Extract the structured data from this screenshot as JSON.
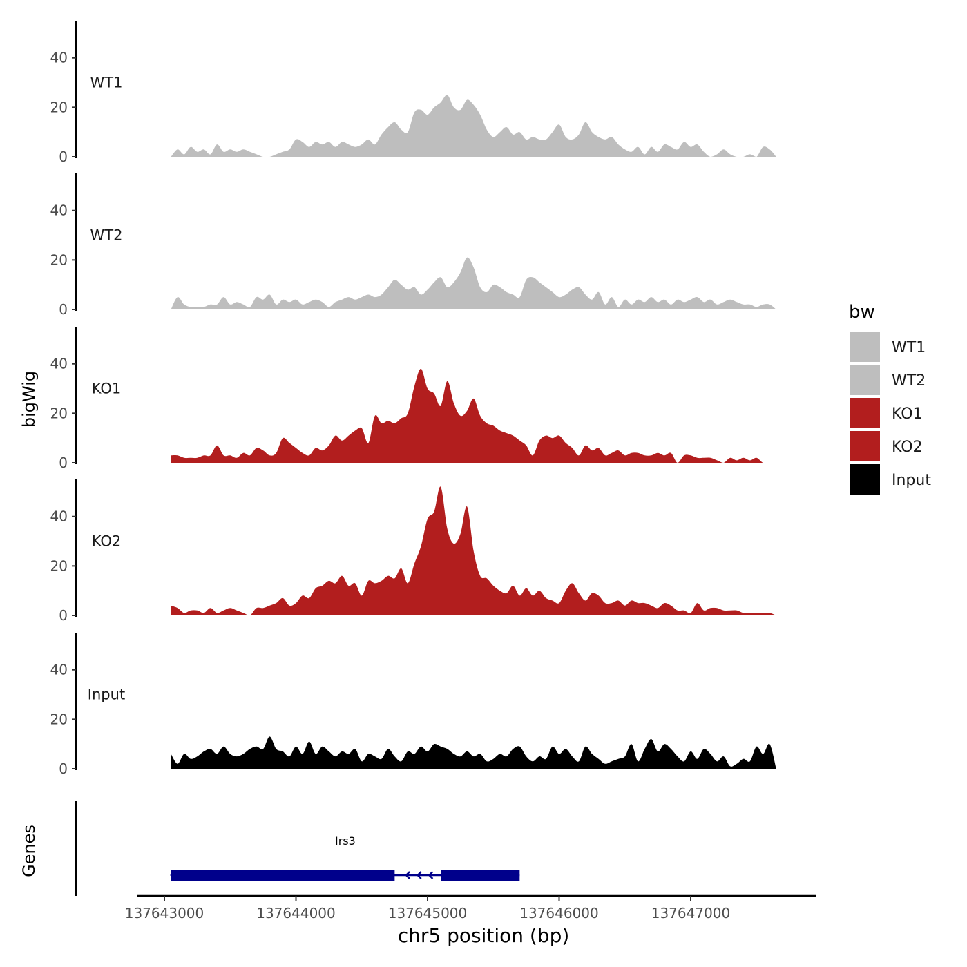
{
  "chart_data": {
    "type": "area",
    "title": "",
    "xlabel": "chr5 position (bp)",
    "ylabel": "bigWig",
    "genes_label": "Genes",
    "xlim": [
      137642800,
      137647800
    ],
    "data_xlim": [
      137643050,
      137647650
    ],
    "ylim": [
      0,
      55
    ],
    "x_ticks": [
      137643000,
      137644000,
      137645000,
      137646000,
      137647000
    ],
    "x_tick_labels": [
      "137643000",
      "137644000",
      "137645000",
      "137646000",
      "137647000"
    ],
    "y_ticks": [
      0,
      20,
      40
    ],
    "y_tick_labels": [
      "0",
      "20",
      "40"
    ],
    "legend": {
      "title": "bw",
      "entries": [
        {
          "label": "WT1",
          "color": "#BEBEBE"
        },
        {
          "label": "WT2",
          "color": "#BEBEBE"
        },
        {
          "label": "KO1",
          "color": "#B21E1E"
        },
        {
          "label": "KO2",
          "color": "#B21E1E"
        },
        {
          "label": "Input",
          "color": "#000000"
        }
      ]
    },
    "series": [
      {
        "name": "WT1",
        "color": "#BEBEBE",
        "x": [
          137643050,
          137643100,
          137643150,
          137643200,
          137643250,
          137643300,
          137643350,
          137643400,
          137643450,
          137643500,
          137643550,
          137643600,
          137643650,
          137643700,
          137643750,
          137643800,
          137643850,
          137643900,
          137643950,
          137644000,
          137644050,
          137644100,
          137644150,
          137644200,
          137644250,
          137644300,
          137644350,
          137644400,
          137644450,
          137644500,
          137644550,
          137644600,
          137644650,
          137644700,
          137644750,
          137644800,
          137644850,
          137644900,
          137644950,
          137645000,
          137645050,
          137645100,
          137645150,
          137645200,
          137645250,
          137645300,
          137645350,
          137645400,
          137645450,
          137645500,
          137645550,
          137645600,
          137645650,
          137645700,
          137645750,
          137645800,
          137645850,
          137645900,
          137645950,
          137646000,
          137646050,
          137646100,
          137646150,
          137646200,
          137646250,
          137646300,
          137646350,
          137646400,
          137646450,
          137646500,
          137646550,
          137646600,
          137646650,
          137646700,
          137646750,
          137646800,
          137646850,
          137646900,
          137646950,
          137647000,
          137647050,
          137647100,
          137647150,
          137647200,
          137647250,
          137647300,
          137647350,
          137647400,
          137647450,
          137647500,
          137647550,
          137647600,
          137647650
        ],
        "values": [
          0,
          3,
          1,
          4,
          2,
          3,
          1,
          5,
          2,
          3,
          2,
          3,
          2,
          1,
          0,
          0,
          1,
          2,
          3,
          7,
          6,
          4,
          6,
          5,
          6,
          4,
          6,
          5,
          4,
          5,
          7,
          5,
          9,
          12,
          14,
          11,
          10,
          18,
          19,
          17,
          20,
          22,
          25,
          20,
          19,
          23,
          21,
          17,
          11,
          8,
          10,
          12,
          9,
          10,
          7,
          8,
          7,
          7,
          10,
          13,
          8,
          7,
          9,
          14,
          10,
          8,
          7,
          8,
          5,
          3,
          2,
          4,
          1,
          4,
          2,
          5,
          4,
          3,
          6,
          4,
          5,
          2,
          0,
          1,
          3,
          1,
          0,
          0,
          1,
          0,
          4,
          3,
          0
        ]
      },
      {
        "name": "WT2",
        "color": "#BEBEBE",
        "x": [
          137643050,
          137643100,
          137643150,
          137643200,
          137643250,
          137643300,
          137643350,
          137643400,
          137643450,
          137643500,
          137643550,
          137643600,
          137643650,
          137643700,
          137643750,
          137643800,
          137643850,
          137643900,
          137643950,
          137644000,
          137644050,
          137644100,
          137644150,
          137644200,
          137644250,
          137644300,
          137644350,
          137644400,
          137644450,
          137644500,
          137644550,
          137644600,
          137644650,
          137644700,
          137644750,
          137644800,
          137644850,
          137644900,
          137644950,
          137645000,
          137645050,
          137645100,
          137645150,
          137645200,
          137645250,
          137645300,
          137645350,
          137645400,
          137645450,
          137645500,
          137645550,
          137645600,
          137645650,
          137645700,
          137645750,
          137645800,
          137645850,
          137645900,
          137645950,
          137646000,
          137646050,
          137646100,
          137646150,
          137646200,
          137646250,
          137646300,
          137646350,
          137646400,
          137646450,
          137646500,
          137646550,
          137646600,
          137646650,
          137646700,
          137646750,
          137646800,
          137646850,
          137646900,
          137646950,
          137647000,
          137647050,
          137647100,
          137647150,
          137647200,
          137647250,
          137647300,
          137647350,
          137647400,
          137647450,
          137647500,
          137647550,
          137647600,
          137647650
        ],
        "values": [
          0,
          5,
          2,
          1,
          1,
          1,
          2,
          2,
          5,
          2,
          3,
          2,
          1,
          5,
          4,
          6,
          2,
          4,
          3,
          4,
          2,
          3,
          4,
          3,
          1,
          3,
          4,
          5,
          4,
          5,
          6,
          5,
          6,
          9,
          12,
          10,
          8,
          9,
          6,
          8,
          11,
          13,
          9,
          11,
          15,
          21,
          17,
          9,
          7,
          10,
          9,
          7,
          6,
          5,
          12,
          13,
          11,
          9,
          7,
          5,
          6,
          8,
          9,
          6,
          4,
          7,
          2,
          5,
          1,
          4,
          2,
          4,
          3,
          5,
          3,
          4,
          2,
          4,
          3,
          4,
          5,
          3,
          4,
          2,
          3,
          4,
          3,
          2,
          2,
          1,
          2,
          2,
          0
        ]
      },
      {
        "name": "KO1",
        "color": "#B21E1E",
        "x": [
          137643050,
          137643100,
          137643150,
          137643200,
          137643250,
          137643300,
          137643350,
          137643400,
          137643450,
          137643500,
          137643550,
          137643600,
          137643650,
          137643700,
          137643750,
          137643800,
          137643850,
          137643900,
          137643950,
          137644000,
          137644050,
          137644100,
          137644150,
          137644200,
          137644250,
          137644300,
          137644350,
          137644400,
          137644450,
          137644500,
          137644550,
          137644600,
          137644650,
          137644700,
          137644750,
          137644800,
          137644850,
          137644900,
          137644950,
          137645000,
          137645050,
          137645100,
          137645150,
          137645200,
          137645250,
          137645300,
          137645350,
          137645400,
          137645450,
          137645500,
          137645550,
          137645600,
          137645650,
          137645700,
          137645750,
          137645800,
          137645850,
          137645900,
          137645950,
          137646000,
          137646050,
          137646100,
          137646150,
          137646200,
          137646250,
          137646300,
          137646350,
          137646400,
          137646450,
          137646500,
          137646550,
          137646600,
          137646650,
          137646700,
          137646750,
          137646800,
          137646850,
          137646900,
          137646950,
          137647000,
          137647050,
          137647100,
          137647150,
          137647200,
          137647250,
          137647300,
          137647350,
          137647400,
          137647450,
          137647500,
          137647550,
          137647600,
          137647650
        ],
        "values": [
          3,
          3,
          2,
          2,
          2,
          3,
          3,
          7,
          3,
          3,
          2,
          4,
          3,
          6,
          5,
          3,
          4,
          10,
          8,
          6,
          4,
          3,
          6,
          5,
          7,
          11,
          9,
          11,
          13,
          14,
          8,
          19,
          16,
          17,
          16,
          18,
          20,
          31,
          38,
          30,
          28,
          23,
          33,
          24,
          19,
          21,
          26,
          19,
          16,
          15,
          13,
          12,
          11,
          9,
          7,
          3,
          9,
          11,
          10,
          11,
          8,
          6,
          3,
          7,
          5,
          6,
          3,
          4,
          5,
          3,
          4,
          4,
          3,
          3,
          4,
          3,
          4,
          0,
          3,
          3,
          2,
          2,
          2,
          1,
          0,
          2,
          1,
          2,
          1,
          2,
          0,
          0,
          0
        ]
      },
      {
        "name": "KO2",
        "color": "#B21E1E",
        "x": [
          137643050,
          137643100,
          137643150,
          137643200,
          137643250,
          137643300,
          137643350,
          137643400,
          137643450,
          137643500,
          137643550,
          137643600,
          137643650,
          137643700,
          137643750,
          137643800,
          137643850,
          137643900,
          137643950,
          137644000,
          137644050,
          137644100,
          137644150,
          137644200,
          137644250,
          137644300,
          137644350,
          137644400,
          137644450,
          137644500,
          137644550,
          137644600,
          137644650,
          137644700,
          137644750,
          137644800,
          137644850,
          137644900,
          137644950,
          137645000,
          137645050,
          137645100,
          137645150,
          137645200,
          137645250,
          137645300,
          137645350,
          137645400,
          137645450,
          137645500,
          137645550,
          137645600,
          137645650,
          137645700,
          137645750,
          137645800,
          137645850,
          137645900,
          137645950,
          137646000,
          137646050,
          137646100,
          137646150,
          137646200,
          137646250,
          137646300,
          137646350,
          137646400,
          137646450,
          137646500,
          137646550,
          137646600,
          137646650,
          137646700,
          137646750,
          137646800,
          137646850,
          137646900,
          137646950,
          137647000,
          137647050,
          137647100,
          137647150,
          137647200,
          137647250,
          137647300,
          137647350,
          137647400,
          137647450,
          137647500,
          137647550,
          137647600,
          137647650
        ],
        "values": [
          4,
          3,
          1,
          2,
          2,
          1,
          3,
          1,
          2,
          3,
          2,
          1,
          0,
          3,
          3,
          4,
          5,
          7,
          4,
          5,
          8,
          7,
          11,
          12,
          14,
          13,
          16,
          12,
          13,
          8,
          14,
          13,
          14,
          16,
          15,
          19,
          13,
          21,
          28,
          39,
          42,
          52,
          35,
          29,
          33,
          44,
          26,
          16,
          15,
          12,
          10,
          9,
          12,
          8,
          11,
          8,
          10,
          7,
          6,
          5,
          10,
          13,
          9,
          6,
          9,
          8,
          5,
          5,
          6,
          4,
          6,
          5,
          5,
          4,
          3,
          5,
          4,
          2,
          2,
          1,
          5,
          2,
          3,
          3,
          2,
          2,
          2,
          1,
          1,
          1,
          1,
          1,
          0
        ]
      },
      {
        "name": "Input",
        "color": "#000000",
        "x": [
          137643050,
          137643100,
          137643150,
          137643200,
          137643250,
          137643300,
          137643350,
          137643400,
          137643450,
          137643500,
          137643550,
          137643600,
          137643650,
          137643700,
          137643750,
          137643800,
          137643850,
          137643900,
          137643950,
          137644000,
          137644050,
          137644100,
          137644150,
          137644200,
          137644250,
          137644300,
          137644350,
          137644400,
          137644450,
          137644500,
          137644550,
          137644600,
          137644650,
          137644700,
          137644750,
          137644800,
          137644850,
          137644900,
          137644950,
          137645000,
          137645050,
          137645100,
          137645150,
          137645200,
          137645250,
          137645300,
          137645350,
          137645400,
          137645450,
          137645500,
          137645550,
          137645600,
          137645650,
          137645700,
          137645750,
          137645800,
          137645850,
          137645900,
          137645950,
          137646000,
          137646050,
          137646100,
          137646150,
          137646200,
          137646250,
          137646300,
          137646350,
          137646400,
          137646450,
          137646500,
          137646550,
          137646600,
          137646650,
          137646700,
          137646750,
          137646800,
          137646850,
          137646900,
          137646950,
          137647000,
          137647050,
          137647100,
          137647150,
          137647200,
          137647250,
          137647300,
          137647350,
          137647400,
          137647450,
          137647500,
          137647550,
          137647600,
          137647650
        ],
        "values": [
          6,
          2,
          6,
          4,
          5,
          7,
          8,
          6,
          9,
          6,
          5,
          6,
          8,
          9,
          8,
          13,
          8,
          7,
          5,
          9,
          6,
          11,
          6,
          9,
          7,
          5,
          7,
          6,
          8,
          3,
          6,
          5,
          4,
          8,
          5,
          3,
          7,
          6,
          9,
          7,
          10,
          9,
          8,
          6,
          5,
          7,
          5,
          6,
          3,
          4,
          6,
          5,
          8,
          9,
          5,
          3,
          5,
          4,
          9,
          6,
          8,
          5,
          3,
          9,
          6,
          4,
          2,
          3,
          4,
          5,
          10,
          3,
          8,
          12,
          7,
          10,
          8,
          5,
          3,
          7,
          4,
          8,
          6,
          3,
          5,
          1,
          2,
          4,
          3,
          9,
          6,
          10,
          0
        ]
      }
    ],
    "genes": [
      {
        "name": "Irs3",
        "strand": "-",
        "start": 137643050,
        "end": 137645700,
        "exons": [
          [
            137643050,
            137644750
          ],
          [
            137645100,
            137645700
          ]
        ]
      }
    ]
  }
}
